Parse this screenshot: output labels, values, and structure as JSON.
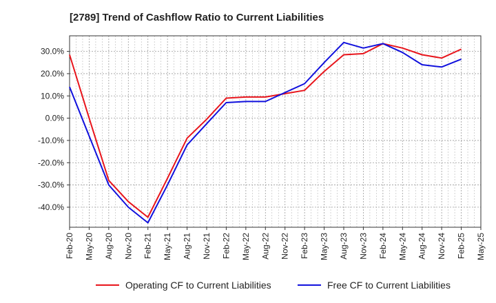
{
  "chart_data": {
    "type": "line",
    "title": "[2789]  Trend of Cashflow Ratio to Current Liabilities",
    "xlabel": "",
    "ylabel": "",
    "categories": [
      "Feb-20",
      "May-20",
      "Aug-20",
      "Nov-20",
      "Feb-21",
      "May-21",
      "Aug-21",
      "Nov-21",
      "Feb-22",
      "May-22",
      "Aug-22",
      "Nov-22",
      "Feb-23",
      "May-23",
      "Aug-23",
      "Nov-23",
      "Feb-24",
      "May-24",
      "Aug-24",
      "Nov-24",
      "Feb-25",
      "May-25"
    ],
    "y_ticks": [
      30,
      20,
      10,
      0,
      -10,
      -20,
      -30,
      -40
    ],
    "y_tick_labels": [
      "30.0%",
      "20.0%",
      "10.0%",
      "0.0%",
      "-10.0%",
      "-20.0%",
      "-30.0%",
      "-40.0%"
    ],
    "ylim": [
      -49,
      37
    ],
    "grid": true,
    "legend_position": "bottom",
    "series": [
      {
        "name": "Operating CF to Current Liabilities",
        "color": "#e8141b",
        "values": [
          28.5,
          0.0,
          -28.0,
          -37.5,
          -44.5,
          -27.0,
          -9.0,
          -0.5,
          9.0,
          9.5,
          9.5,
          11.0,
          12.5,
          21.0,
          28.5,
          29.0,
          33.5,
          31.5,
          28.5,
          27.0,
          31.0,
          null
        ]
      },
      {
        "name": "Free CF to Current Liabilities",
        "color": "#1010dd",
        "values": [
          14.0,
          -8.0,
          -30.0,
          -40.0,
          -47.0,
          -30.0,
          -12.0,
          -2.5,
          7.0,
          7.5,
          7.5,
          11.5,
          15.5,
          25.0,
          34.0,
          31.5,
          33.5,
          29.5,
          24.0,
          23.0,
          26.5,
          null
        ]
      }
    ]
  }
}
